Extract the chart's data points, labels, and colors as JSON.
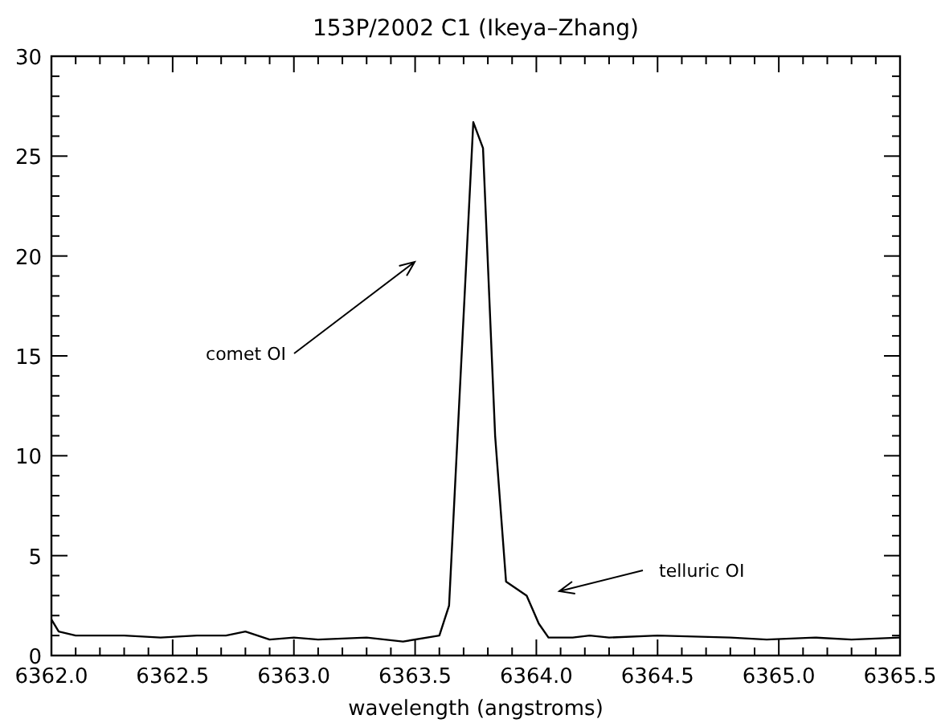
{
  "chart_data": {
    "type": "line",
    "title": "153P/2002 C1 (Ikeya–Zhang)",
    "xlabel": "wavelength (angstroms)",
    "x": [
      6362.0,
      6362.03,
      6362.1,
      6362.3,
      6362.45,
      6362.6,
      6362.72,
      6362.8,
      6362.9,
      6363.0,
      6363.1,
      6363.3,
      6363.45,
      6363.6,
      6363.64,
      6363.74,
      6363.78,
      6363.83,
      6363.875,
      6363.96,
      6364.01,
      6364.05,
      6364.15,
      6364.22,
      6364.3,
      6364.5,
      6364.8,
      6364.95,
      6365.15,
      6365.3,
      6365.5
    ],
    "series": [
      {
        "color": "#000000",
        "values": [
          1.8,
          1.2,
          1.0,
          1.0,
          0.9,
          1.0,
          1.0,
          1.2,
          0.8,
          0.9,
          0.8,
          0.9,
          0.7,
          1.0,
          2.5,
          26.7,
          25.4,
          11,
          3.7,
          3.0,
          1.6,
          0.9,
          0.9,
          1.0,
          0.9,
          1.0,
          0.9,
          0.8,
          0.9,
          0.8,
          0.9
        ]
      }
    ],
    "annotations": [
      "comet OI",
      "telluric OI"
    ],
    "xlim": [
      6362.0,
      6365.5
    ],
    "xticks": [
      {
        "value": 6362.0,
        "label": "6362.0"
      },
      {
        "value": 6362.1,
        "label": null
      },
      {
        "value": 6362.2,
        "label": null
      },
      {
        "value": 6362.3,
        "label": null
      },
      {
        "value": 6362.4,
        "label": null
      },
      {
        "value": 6362.5,
        "label": "6362.5"
      },
      {
        "value": 6362.6,
        "label": null
      },
      {
        "value": 6362.7,
        "label": null
      },
      {
        "value": 6362.8,
        "label": null
      },
      {
        "value": 6362.9,
        "label": null
      },
      {
        "value": 6363.0,
        "label": "6363.0"
      },
      {
        "value": 6363.1,
        "label": null
      },
      {
        "value": 6363.2,
        "label": null
      },
      {
        "value": 6363.3,
        "label": null
      },
      {
        "value": 6363.4,
        "label": null
      },
      {
        "value": 6363.5,
        "label": "6363.5"
      },
      {
        "value": 6363.6,
        "label": null
      },
      {
        "value": 6363.7,
        "label": null
      },
      {
        "value": 6363.8,
        "label": null
      },
      {
        "value": 6363.9,
        "label": null
      },
      {
        "value": 6364.0,
        "label": "6364.0"
      },
      {
        "value": 6364.1,
        "label": null
      },
      {
        "value": 6364.2,
        "label": null
      },
      {
        "value": 6364.3,
        "label": null
      },
      {
        "value": 6364.4,
        "label": null
      },
      {
        "value": 6364.5,
        "label": "6364.5"
      },
      {
        "value": 6364.6,
        "label": null
      },
      {
        "value": 6364.7,
        "label": null
      },
      {
        "value": 6364.8,
        "label": null
      },
      {
        "value": 6364.9,
        "label": null
      },
      {
        "value": 6365.0,
        "label": "6365.0"
      },
      {
        "value": 6365.1,
        "label": null
      },
      {
        "value": 6365.2,
        "label": null
      },
      {
        "value": 6365.3,
        "label": null
      },
      {
        "value": 6365.4,
        "label": null
      },
      {
        "value": 6365.5,
        "label": "6365.5"
      }
    ],
    "ylim": [
      0,
      30
    ],
    "yticks": [
      0,
      {
        "value": 1,
        "label": null
      },
      {
        "value": 2,
        "label": null
      },
      {
        "value": 3,
        "label": null
      },
      {
        "value": 4,
        "label": null
      },
      5,
      {
        "value": 6,
        "label": null
      },
      {
        "value": 7,
        "label": null
      },
      {
        "value": 8,
        "label": null
      },
      {
        "value": 9,
        "label": null
      },
      10,
      {
        "value": 11,
        "label": null
      },
      {
        "value": 12,
        "label": null
      },
      {
        "value": 13,
        "label": null
      },
      {
        "value": 14,
        "label": null
      },
      15,
      {
        "value": 16,
        "label": null
      },
      {
        "value": 17,
        "label": null
      },
      {
        "value": 18,
        "label": null
      },
      {
        "value": 19,
        "label": null
      },
      20,
      {
        "value": 21,
        "label": null
      },
      {
        "value": 22,
        "label": null
      },
      {
        "value": 23,
        "label": null
      },
      {
        "value": 24,
        "label": null
      },
      25,
      {
        "value": 26,
        "label": null
      },
      {
        "value": 27,
        "label": null
      },
      {
        "value": 28,
        "label": null
      },
      {
        "value": 29,
        "label": null
      },
      30
    ],
    "grid": false,
    "marker": "none",
    "line_style": "solid"
  }
}
